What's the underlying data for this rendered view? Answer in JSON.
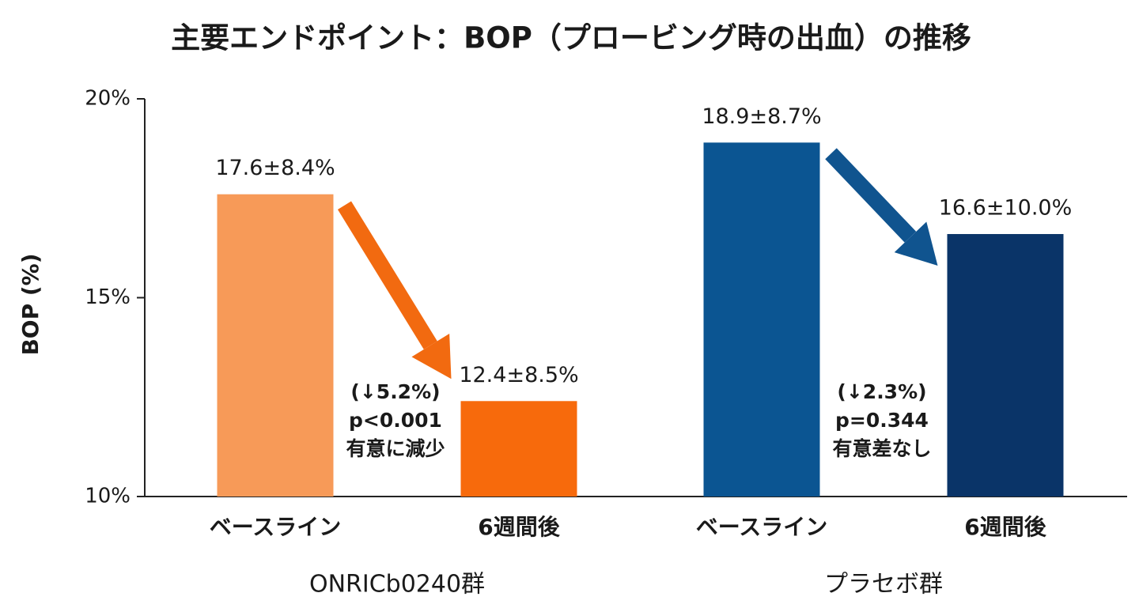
{
  "chart_data": {
    "type": "bar",
    "title": "主要エンドポイント：BOP（プロービング時の出血）の推移",
    "ylabel": "BOP (%)",
    "ylim": [
      10,
      20
    ],
    "yticks": [
      {
        "value": 10,
        "label": "10%"
      },
      {
        "value": 15,
        "label": "15%"
      },
      {
        "value": 20,
        "label": "20%"
      }
    ],
    "groups": [
      {
        "name": "ONRICb0240群",
        "categories": [
          "ベースライン",
          "6週間後"
        ],
        "values": [
          17.6,
          12.4
        ],
        "value_labels": [
          "17.6±8.4%",
          "12.4±8.5%"
        ],
        "colors": [
          "#f79a58",
          "#f76a0c"
        ],
        "arrow_color": "#f26a10",
        "annotation": [
          "(↓5.2%)",
          "p<0.001",
          "有意に減少"
        ]
      },
      {
        "name": "プラセボ群",
        "categories": [
          "ベースライン",
          "6週間後"
        ],
        "values": [
          18.9,
          16.6
        ],
        "value_labels": [
          "18.9±8.7%",
          "16.6±10.0%"
        ],
        "colors": [
          "#0b5592",
          "#0a3468"
        ],
        "arrow_color": "#10548f",
        "annotation": [
          "(↓2.3%)",
          "p=0.344",
          "有意差なし"
        ]
      }
    ]
  }
}
